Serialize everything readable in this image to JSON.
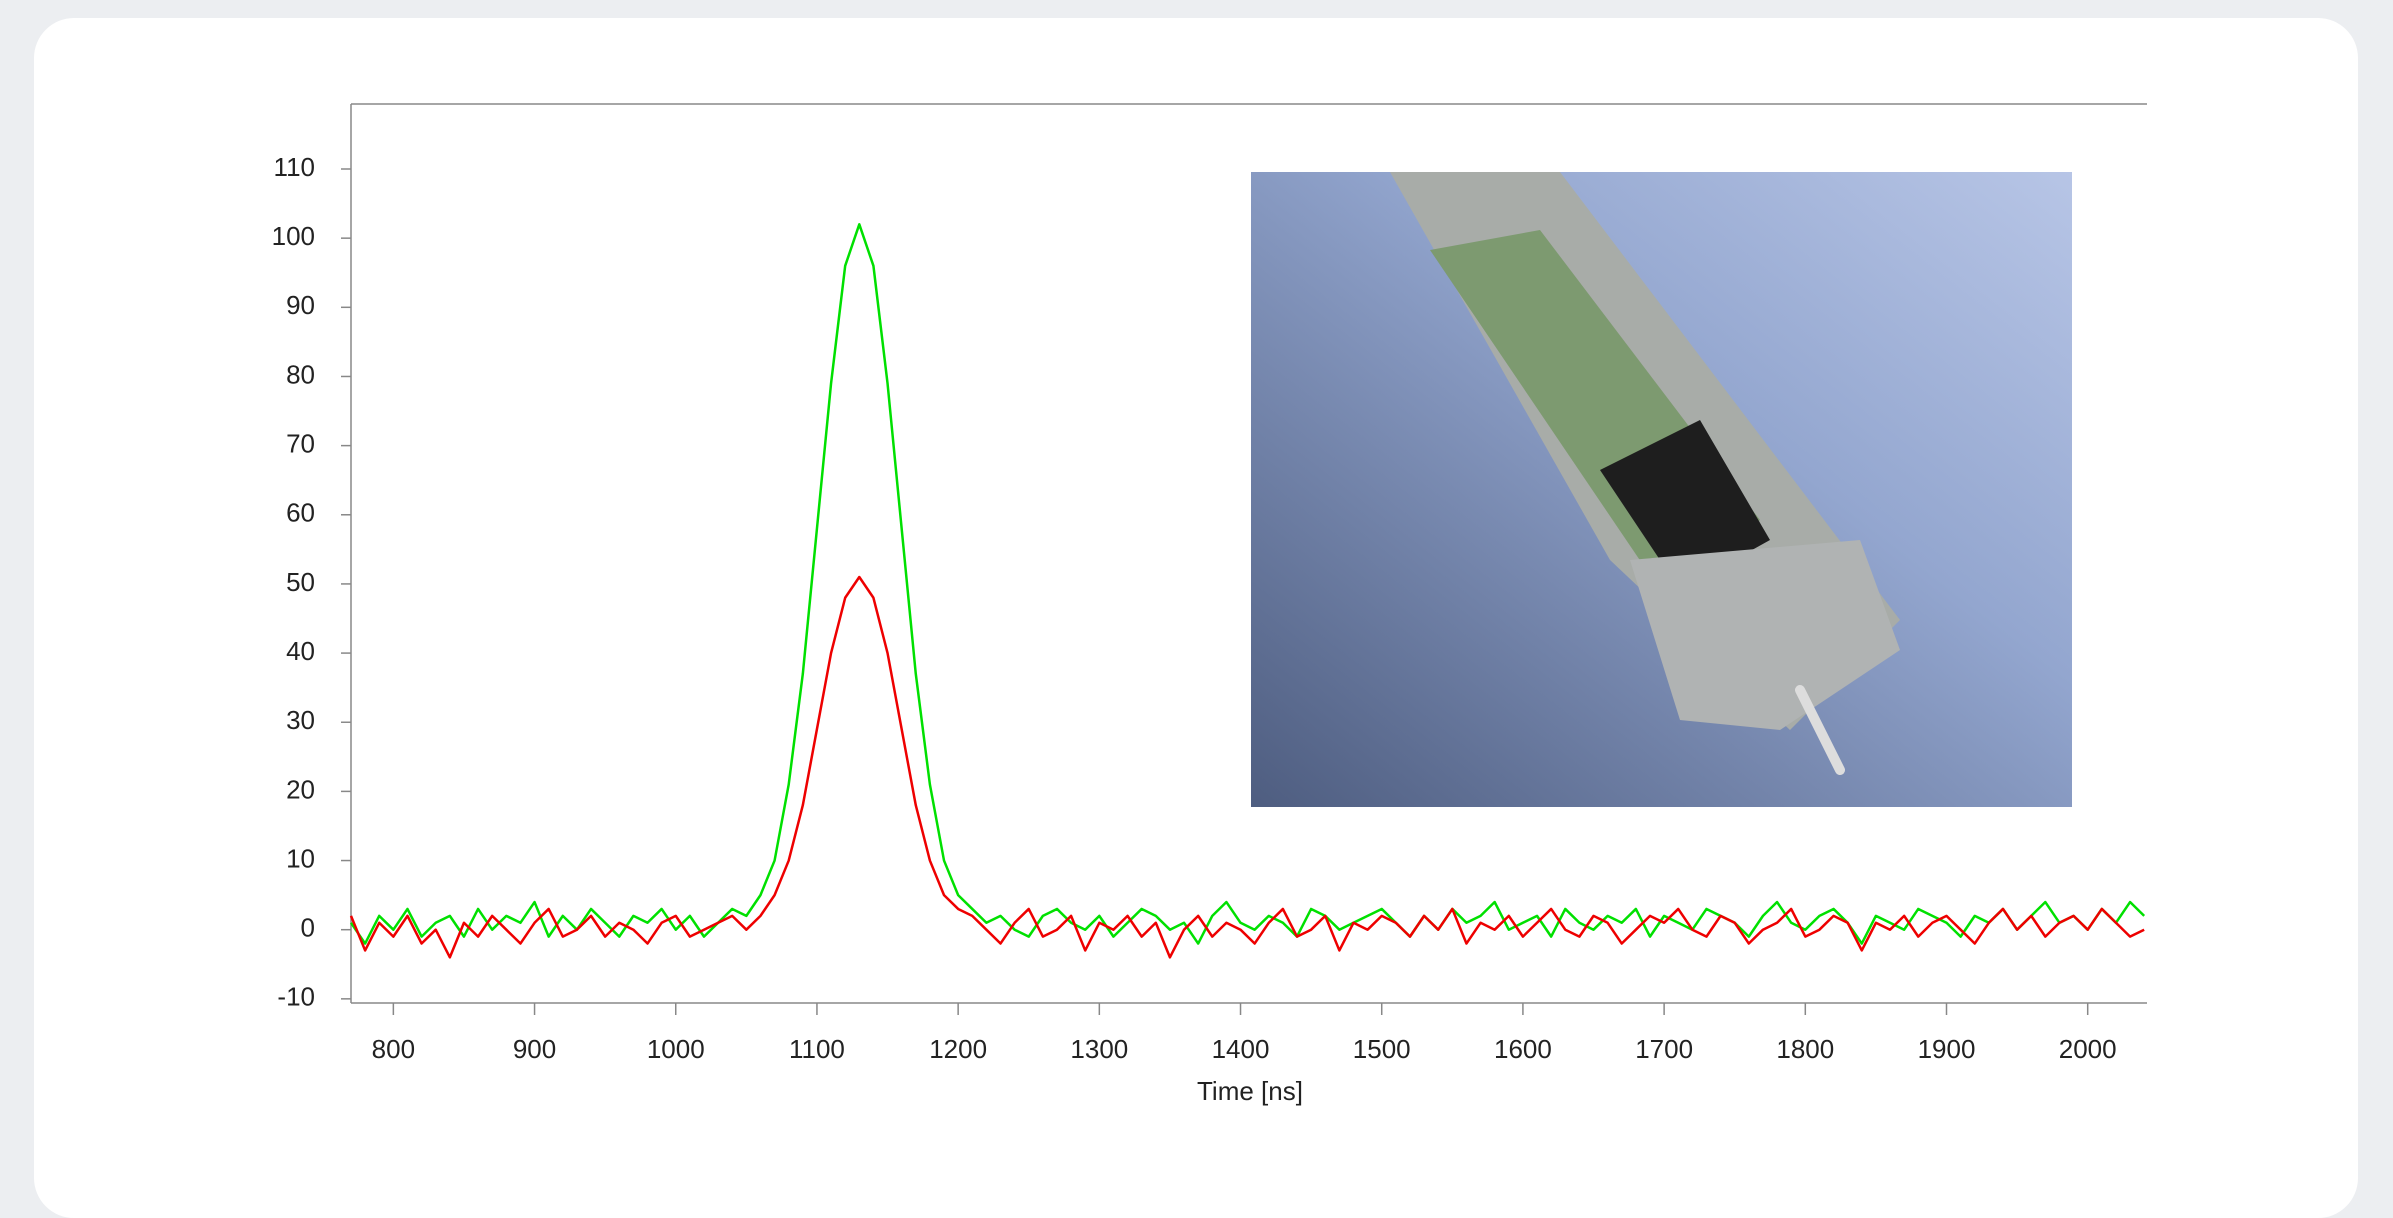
{
  "chart_data": {
    "type": "line",
    "x_label": "Time [ns]",
    "x": [
      770,
      780,
      790,
      800,
      810,
      820,
      830,
      840,
      850,
      860,
      870,
      880,
      890,
      900,
      910,
      920,
      930,
      940,
      950,
      960,
      970,
      980,
      990,
      1000,
      1010,
      1020,
      1030,
      1040,
      1050,
      1060,
      1070,
      1080,
      1090,
      1100,
      1110,
      1120,
      1130,
      1140,
      1150,
      1160,
      1170,
      1180,
      1190,
      1200,
      1210,
      1220,
      1230,
      1240,
      1250,
      1260,
      1270,
      1280,
      1290,
      1300,
      1310,
      1320,
      1330,
      1340,
      1350,
      1360,
      1370,
      1380,
      1390,
      1400,
      1410,
      1420,
      1430,
      1440,
      1450,
      1460,
      1470,
      1480,
      1490,
      1500,
      1510,
      1520,
      1530,
      1540,
      1550,
      1560,
      1570,
      1580,
      1590,
      1600,
      1610,
      1620,
      1630,
      1640,
      1650,
      1660,
      1670,
      1680,
      1690,
      1700,
      1710,
      1720,
      1730,
      1740,
      1750,
      1760,
      1770,
      1780,
      1790,
      1800,
      1810,
      1820,
      1830,
      1840,
      1850,
      1860,
      1870,
      1880,
      1890,
      1900,
      1910,
      1920,
      1930,
      1940,
      1950,
      1960,
      1970,
      1980,
      1990,
      2000,
      2010,
      2020,
      2030,
      2040
    ],
    "series": [
      {
        "name": "green",
        "color": "#00e000",
        "values": [
          1,
          -2,
          2,
          0,
          3,
          -1,
          1,
          2,
          -1,
          3,
          0,
          2,
          1,
          4,
          -1,
          2,
          0,
          3,
          1,
          -1,
          2,
          1,
          3,
          0,
          2,
          -1,
          1,
          3,
          2,
          5,
          10,
          21,
          37,
          58,
          79,
          96,
          102,
          96,
          79,
          58,
          37,
          21,
          10,
          5,
          3,
          1,
          2,
          0,
          -1,
          2,
          3,
          1,
          0,
          2,
          -1,
          1,
          3,
          2,
          0,
          1,
          -2,
          2,
          4,
          1,
          0,
          2,
          1,
          -1,
          3,
          2,
          0,
          1,
          2,
          3,
          1,
          -1,
          2,
          0,
          3,
          1,
          2,
          4,
          0,
          1,
          2,
          -1,
          3,
          1,
          0,
          2,
          1,
          3,
          -1,
          2,
          1,
          0,
          3,
          2,
          1,
          -1,
          2,
          4,
          1,
          0,
          2,
          3,
          1,
          -2,
          2,
          1,
          0,
          3,
          2,
          1,
          -1,
          2,
          1,
          3,
          0,
          2,
          4,
          1,
          2,
          0,
          3,
          1,
          4,
          2
        ]
      },
      {
        "name": "red",
        "color": "#ee0000",
        "values": [
          2,
          -3,
          1,
          -1,
          2,
          -2,
          0,
          -4,
          1,
          -1,
          2,
          0,
          -2,
          1,
          3,
          -1,
          0,
          2,
          -1,
          1,
          0,
          -2,
          1,
          2,
          -1,
          0,
          1,
          2,
          0,
          2,
          5,
          10,
          18,
          29,
          40,
          48,
          51,
          48,
          40,
          29,
          18,
          10,
          5,
          3,
          2,
          0,
          -2,
          1,
          3,
          -1,
          0,
          2,
          -3,
          1,
          0,
          2,
          -1,
          1,
          -4,
          0,
          2,
          -1,
          1,
          0,
          -2,
          1,
          3,
          -1,
          0,
          2,
          -3,
          1,
          0,
          2,
          1,
          -1,
          2,
          0,
          3,
          -2,
          1,
          0,
          2,
          -1,
          1,
          3,
          0,
          -1,
          2,
          1,
          -2,
          0,
          2,
          1,
          3,
          0,
          -1,
          2,
          1,
          -2,
          0,
          1,
          3,
          -1,
          0,
          2,
          1,
          -3,
          1,
          0,
          2,
          -1,
          1,
          2,
          0,
          -2,
          1,
          3,
          0,
          2,
          -1,
          1,
          2,
          0,
          3,
          1,
          -1,
          0
        ]
      }
    ],
    "xlim": [
      770,
      2042
    ],
    "xticks": [
      800,
      900,
      1000,
      1100,
      1200,
      1300,
      1400,
      1500,
      1600,
      1700,
      1800,
      1900,
      2000
    ],
    "ylim": [
      -10.6,
      119.4
    ],
    "yticks": [
      -10,
      0,
      10,
      20,
      30,
      40,
      50,
      60,
      70,
      80,
      90,
      100,
      110
    ]
  }
}
